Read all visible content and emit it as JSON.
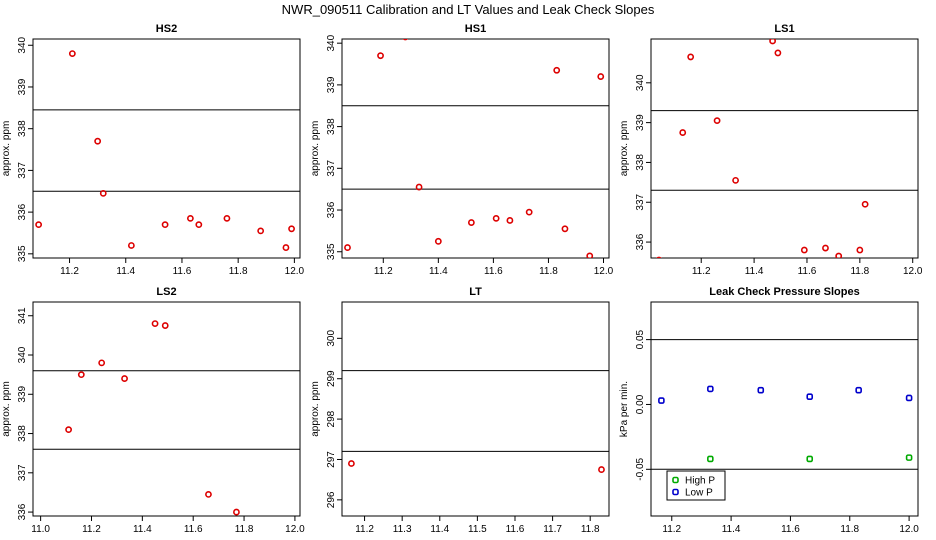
{
  "title": "NWR_090511  Calibration and LT Values and Leak Check Slopes",
  "colors": {
    "red": "#dd0000",
    "green": "#00aa00",
    "blue": "#0000cc"
  },
  "chart_data": [
    {
      "type": "scatter",
      "title": "HS2",
      "ylabel": "approx. ppm",
      "xlim": [
        11.07,
        12.02
      ],
      "ylim": [
        334.9,
        340.15
      ],
      "xticks": [
        "11.2",
        "11.4",
        "11.6",
        "11.8",
        "12.0"
      ],
      "xtick_values": [
        11.2,
        11.4,
        11.6,
        11.8,
        12.0
      ],
      "yticks": [
        "335",
        "336",
        "337",
        "338",
        "339",
        "340"
      ],
      "ytick_values": [
        335,
        336,
        337,
        338,
        339,
        340
      ],
      "hlines": [
        338.45,
        336.5
      ],
      "series": [
        {
          "name": "values",
          "color": "red",
          "x": [
            11.09,
            11.21,
            11.3,
            11.32,
            11.42,
            11.54,
            11.63,
            11.66,
            11.76,
            11.88,
            11.97,
            11.99
          ],
          "y": [
            335.7,
            339.8,
            337.7,
            336.45,
            335.2,
            335.7,
            335.85,
            335.7,
            335.85,
            335.55,
            335.15,
            335.6
          ]
        }
      ]
    },
    {
      "type": "scatter",
      "title": "HS1",
      "ylabel": "approx. ppm",
      "xlim": [
        11.05,
        12.02
      ],
      "ylim": [
        334.85,
        340.1
      ],
      "xticks": [
        "11.2",
        "11.4",
        "11.6",
        "11.8",
        "12.0"
      ],
      "xtick_values": [
        11.2,
        11.4,
        11.6,
        11.8,
        12.0
      ],
      "yticks": [
        "335",
        "336",
        "337",
        "338",
        "339",
        "340"
      ],
      "ytick_values": [
        335,
        336,
        337,
        338,
        339,
        340
      ],
      "hlines": [
        338.5,
        336.5
      ],
      "series": [
        {
          "name": "values",
          "color": "red",
          "x": [
            11.07,
            11.19,
            11.28,
            11.33,
            11.4,
            11.52,
            11.61,
            11.66,
            11.73,
            11.83,
            11.86,
            11.95,
            11.99
          ],
          "y": [
            335.1,
            339.7,
            340.15,
            336.55,
            335.25,
            335.7,
            335.8,
            335.75,
            335.95,
            339.35,
            335.55,
            334.9,
            339.2
          ]
        }
      ]
    },
    {
      "type": "scatter",
      "title": "LS1",
      "ylabel": "approx. ppm",
      "xlim": [
        11.01,
        12.02
      ],
      "ylim": [
        335.6,
        341.1
      ],
      "xticks": [
        "11.2",
        "11.4",
        "11.6",
        "11.8",
        "12.0"
      ],
      "xtick_values": [
        11.2,
        11.4,
        11.6,
        11.8,
        12.0
      ],
      "yticks": [
        "336",
        "337",
        "338",
        "339",
        "340"
      ],
      "ytick_values": [
        336,
        337,
        338,
        339,
        340
      ],
      "hlines": [
        339.3,
        337.3
      ],
      "series": [
        {
          "name": "values",
          "color": "red",
          "x": [
            11.04,
            11.13,
            11.16,
            11.26,
            11.33,
            11.47,
            11.49,
            11.59,
            11.67,
            11.72,
            11.8,
            11.82
          ],
          "y": [
            335.55,
            338.75,
            340.65,
            339.05,
            337.55,
            341.05,
            340.75,
            335.8,
            335.85,
            335.65,
            335.8,
            336.95
          ]
        }
      ]
    },
    {
      "type": "scatter",
      "title": "LS2",
      "ylabel": "approx. ppm",
      "xlim": [
        10.97,
        12.02
      ],
      "ylim": [
        335.9,
        341.35
      ],
      "xticks": [
        "11.0",
        "11.2",
        "11.4",
        "11.6",
        "11.8",
        "12.0"
      ],
      "xtick_values": [
        11.0,
        11.2,
        11.4,
        11.6,
        11.8,
        12.0
      ],
      "yticks": [
        "336",
        "337",
        "338",
        "339",
        "340",
        "341"
      ],
      "ytick_values": [
        336,
        337,
        338,
        339,
        340,
        341
      ],
      "hlines": [
        339.6,
        337.6
      ],
      "series": [
        {
          "name": "values",
          "color": "red",
          "x": [
            11.11,
            11.16,
            11.24,
            11.33,
            11.45,
            11.49,
            11.66,
            11.77
          ],
          "y": [
            338.1,
            339.5,
            339.8,
            339.4,
            340.8,
            340.75,
            336.45,
            336.0
          ]
        }
      ]
    },
    {
      "type": "scatter",
      "title": "LT",
      "ylabel": "approx. ppm",
      "xlim": [
        11.14,
        11.85
      ],
      "ylim": [
        295.6,
        300.9
      ],
      "xticks": [
        "11.2",
        "11.3",
        "11.4",
        "11.5",
        "11.6",
        "11.7",
        "11.8"
      ],
      "xtick_values": [
        11.2,
        11.3,
        11.4,
        11.5,
        11.6,
        11.7,
        11.8
      ],
      "yticks": [
        "296",
        "297",
        "298",
        "299",
        "300"
      ],
      "ytick_values": [
        296,
        297,
        298,
        299,
        300
      ],
      "hlines": [
        299.2,
        297.2
      ],
      "series": [
        {
          "name": "values",
          "color": "red",
          "x": [
            11.165,
            11.83
          ],
          "y": [
            296.9,
            296.75
          ]
        }
      ]
    },
    {
      "type": "scatter",
      "title": "Leak Check Pressure Slopes",
      "ylabel": "kPa per min.",
      "xlim": [
        11.13,
        12.03
      ],
      "ylim": [
        -0.086,
        0.079
      ],
      "xticks": [
        "11.2",
        "11.4",
        "11.6",
        "11.8",
        "12.0"
      ],
      "xtick_values": [
        11.2,
        11.4,
        11.6,
        11.8,
        12.0
      ],
      "yticks": [
        "-0.05",
        "0.00",
        "0.05"
      ],
      "ytick_values": [
        -0.05,
        0.0,
        0.05
      ],
      "hlines": [
        0.05,
        -0.05
      ],
      "legend": {
        "position": "bottom-left"
      },
      "series": [
        {
          "name": "High P",
          "color": "green",
          "x": [
            11.33,
            11.665,
            12.0
          ],
          "y": [
            -0.042,
            -0.042,
            -0.041
          ]
        },
        {
          "name": "Low P",
          "color": "blue",
          "x": [
            11.165,
            11.33,
            11.5,
            11.665,
            11.83,
            12.0
          ],
          "y": [
            0.003,
            0.012,
            0.011,
            0.006,
            0.011,
            0.005
          ]
        }
      ]
    }
  ]
}
